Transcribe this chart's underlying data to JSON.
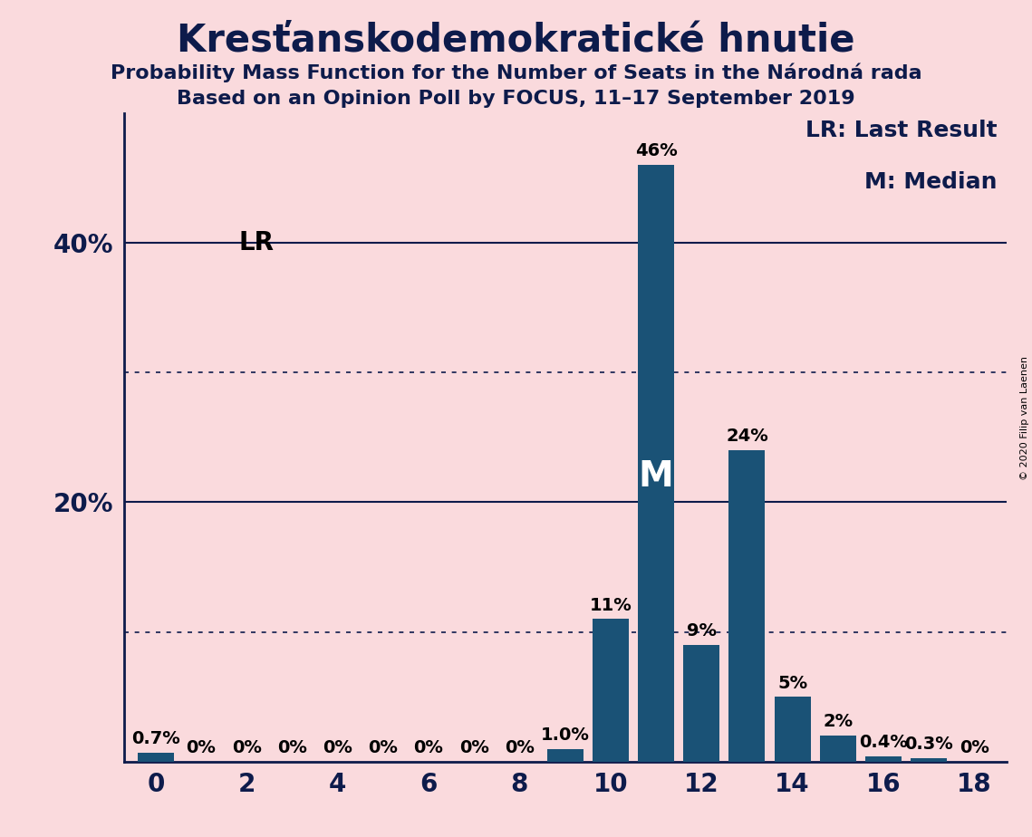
{
  "title": "Kresťanskodemokratické hnutie",
  "subtitle1": "Probability Mass Function for the Number of Seats in the Národná rada",
  "subtitle2": "Based on an Opinion Poll by FOCUS, 11–17 September 2019",
  "copyright": "© 2020 Filip van Laenen",
  "seats": [
    0,
    1,
    2,
    3,
    4,
    5,
    6,
    7,
    8,
    9,
    10,
    11,
    12,
    13,
    14,
    15,
    16,
    17,
    18
  ],
  "probabilities": [
    0.7,
    0.0,
    0.0,
    0.0,
    0.0,
    0.0,
    0.0,
    0.0,
    0.0,
    1.0,
    11.0,
    46.0,
    9.0,
    24.0,
    5.0,
    2.0,
    0.4,
    0.3,
    0.0
  ],
  "bar_color": "#1a5276",
  "background_color": "#fadadd",
  "lr_seat": 0,
  "median_seat": 11,
  "ylim": [
    0,
    50
  ],
  "solid_yticks": [
    20,
    40
  ],
  "dotted_yticks": [
    10,
    30
  ],
  "xlim": [
    -0.7,
    18.7
  ],
  "xticks": [
    0,
    2,
    4,
    6,
    8,
    10,
    12,
    14,
    16,
    18
  ],
  "legend_lr": "LR: Last Result",
  "legend_m": "M: Median",
  "label_lr": "LR",
  "label_m": "M",
  "title_fontsize": 30,
  "subtitle_fontsize": 16,
  "axis_fontsize": 20,
  "bar_label_fontsize": 14,
  "legend_fontsize": 18,
  "median_label_fontsize": 28
}
